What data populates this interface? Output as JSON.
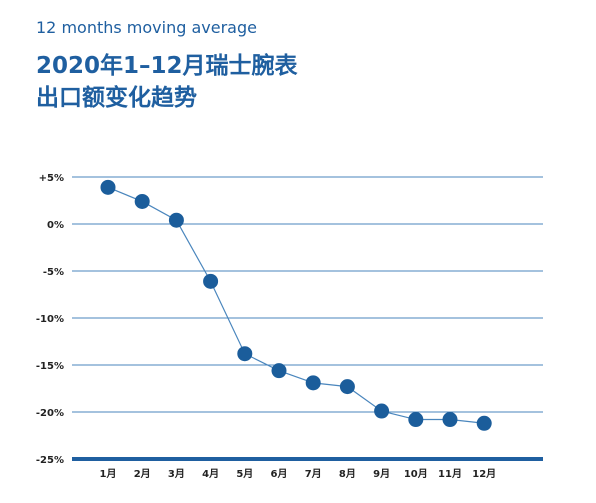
{
  "header": {
    "subtitle": "12 months moving average",
    "title_line1": "2020年1–12月瑞士腕表",
    "title_line2": "出口额变化趋势"
  },
  "colors": {
    "accent": "#1f5fa0",
    "grid": "#4a86bd",
    "marker": "#1b5d9b"
  },
  "chart_data": {
    "type": "line",
    "title": "2020年1–12月瑞士腕表 出口额变化趋势",
    "subtitle": "12 months moving average",
    "xlabel": "",
    "ylabel": "",
    "categories": [
      "1月",
      "2月",
      "3月",
      "4月",
      "5月",
      "6月",
      "7月",
      "8月",
      "9月",
      "10月",
      "11月",
      "12月"
    ],
    "series": [
      {
        "values": [
          3.9,
          2.4,
          0.4,
          -6.1,
          -13.8,
          -15.6,
          -16.9,
          -17.3,
          -19.9,
          -20.8,
          -20.8,
          -21.2
        ]
      }
    ],
    "ylim": [
      -25,
      5
    ],
    "yticks": [
      5,
      0,
      -5,
      -10,
      -15,
      -20,
      -25
    ],
    "ytick_labels": [
      "+5%",
      "0%",
      "-5%",
      "-10%",
      "-15%",
      "-20%",
      "-25%"
    ],
    "grid": true,
    "legend": "none"
  }
}
